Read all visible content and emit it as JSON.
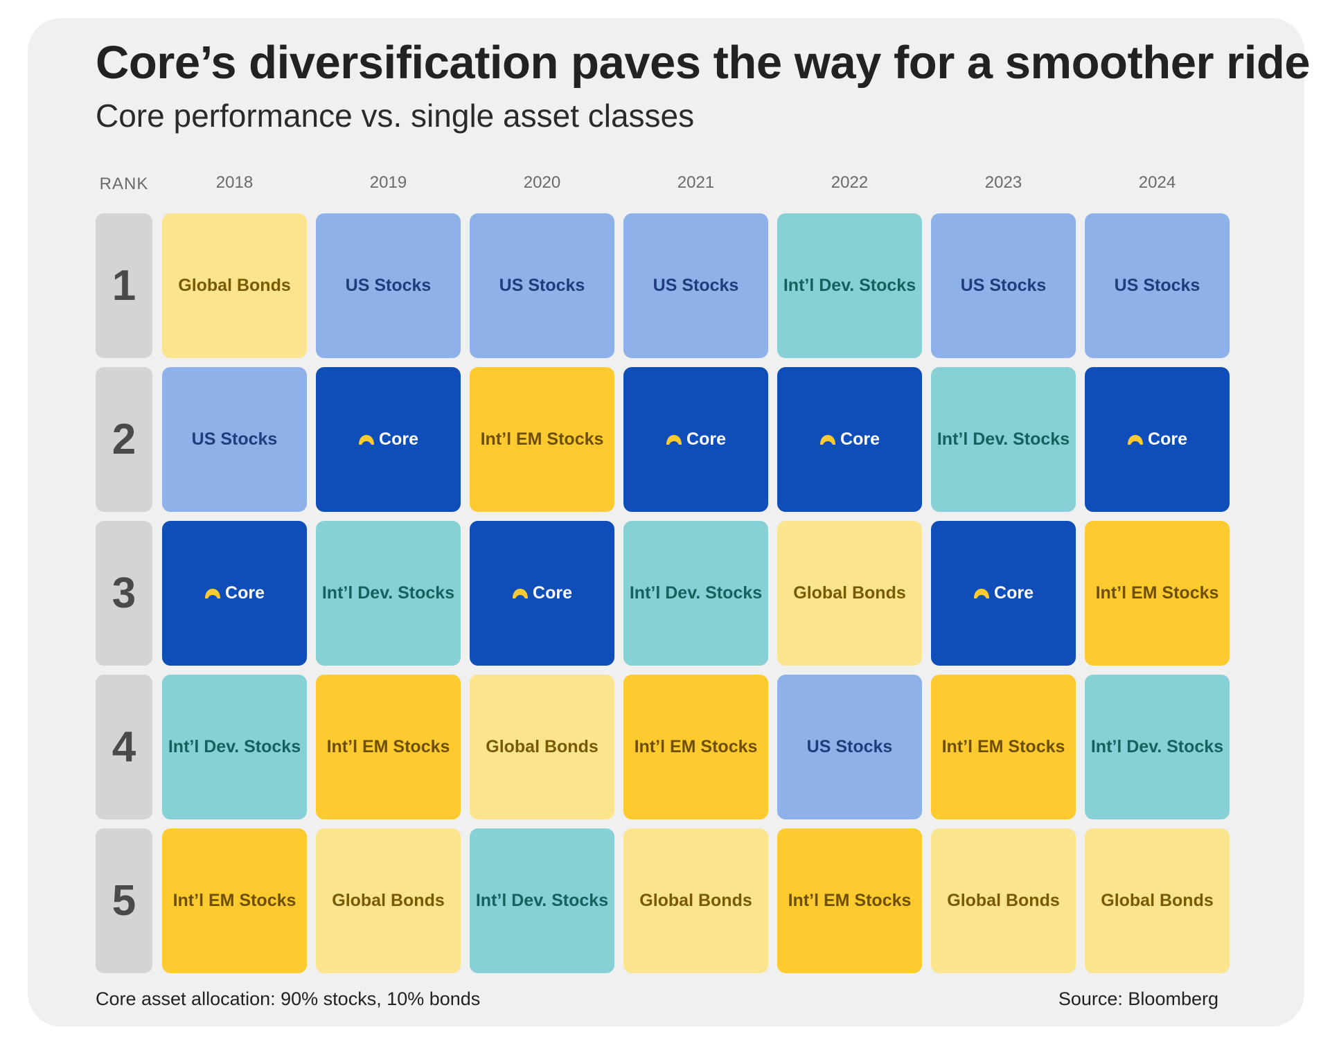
{
  "header": {
    "title": "Core’s diversification paves the way for a smoother ride",
    "subtitle": "Core performance vs. single asset classes"
  },
  "colors": {
    "US Stocks": "#8fb1e9",
    "Int’l Dev. Stocks": "#87d1d6",
    "Int’l EM Stocks": "#fdcb2f",
    "Global Bonds": "#fbe48e",
    "Core": "#0f4eb8",
    "core_icon": "#fdcb2f",
    "card_background": "#f0f0f0",
    "rank_cell": "#d4d4d4"
  },
  "chart_data": {
    "type": "table",
    "row_header_label": "RANK",
    "years": [
      "2018",
      "2019",
      "2020",
      "2021",
      "2022",
      "2023",
      "2024"
    ],
    "ranks": [
      "1",
      "2",
      "3",
      "4",
      "5"
    ],
    "rankings": [
      [
        "Global Bonds",
        "US Stocks",
        "Core",
        "Int’l Dev. Stocks",
        "Int’l EM Stocks"
      ],
      [
        "US Stocks",
        "Core",
        "Int’l Dev. Stocks",
        "Int’l EM Stocks",
        "Global Bonds"
      ],
      [
        "US Stocks",
        "Int’l EM Stocks",
        "Core",
        "Global Bonds",
        "Int’l Dev. Stocks"
      ],
      [
        "US Stocks",
        "Core",
        "Int’l Dev. Stocks",
        "Int’l EM Stocks",
        "Global Bonds"
      ],
      [
        "Int’l Dev. Stocks",
        "Core",
        "Global Bonds",
        "US Stocks",
        "Int’l EM Stocks"
      ],
      [
        "US Stocks",
        "Int’l Dev. Stocks",
        "Core",
        "Int’l EM Stocks",
        "Global Bonds"
      ],
      [
        "US Stocks",
        "Core",
        "Int’l EM Stocks",
        "Int’l Dev. Stocks",
        "Global Bonds"
      ]
    ],
    "highlight": "Core",
    "highlight_icon": "core-logo-icon"
  },
  "footer": {
    "note": "Core asset allocation: 90% stocks, 10% bonds",
    "source": "Source: Bloomberg"
  }
}
